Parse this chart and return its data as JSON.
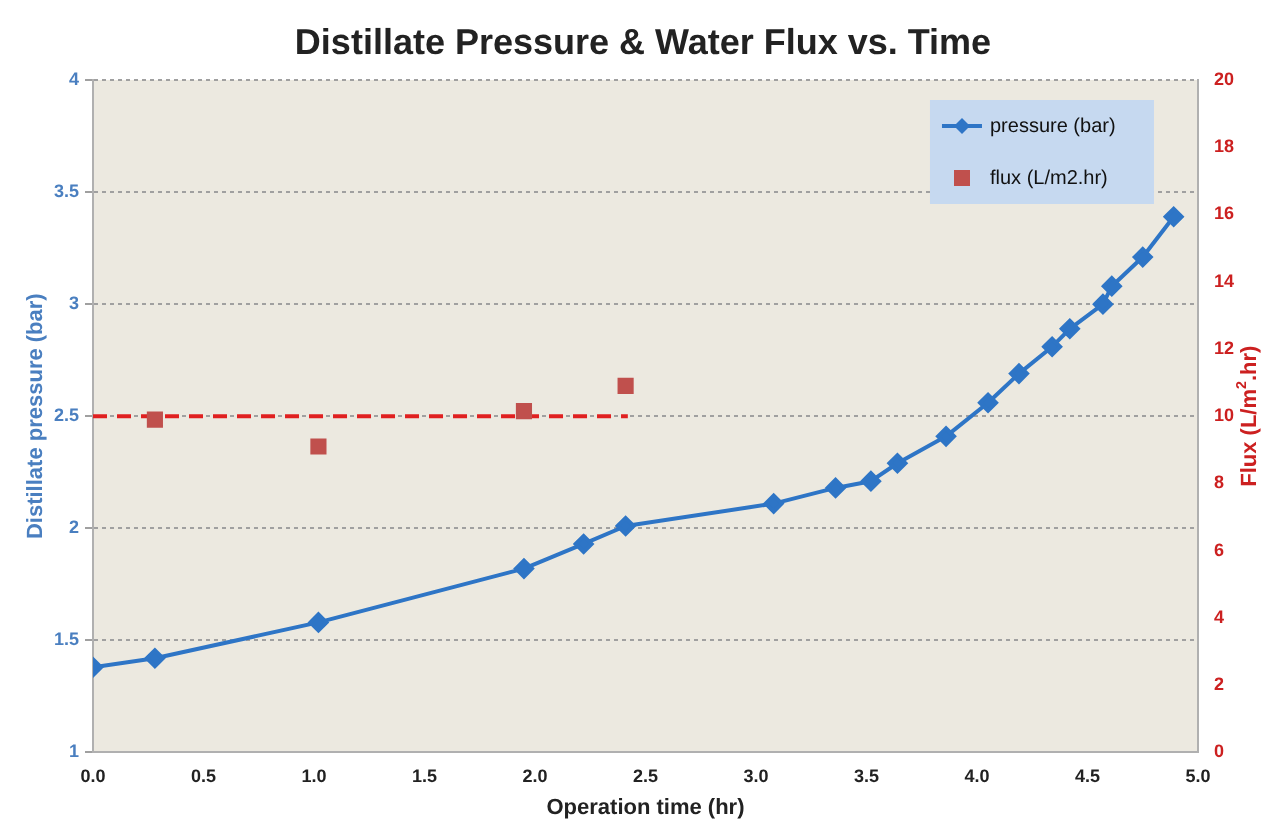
{
  "chart_data": {
    "type": "line",
    "title": "Distillate Pressure & Water Flux vs. Time",
    "xlabel": "Operation time (hr)",
    "ylabel": "Distillate pressure (bar)",
    "y2label": "Flux (L/m$^{2}$.hr)",
    "xlim": [
      0,
      5
    ],
    "xticks": [
      {
        "value": 0,
        "label": "0.0"
      },
      {
        "value": 0.5,
        "label": "0.5"
      },
      {
        "value": 1,
        "label": "1.0"
      },
      {
        "value": 1.5,
        "label": "1.5"
      },
      {
        "value": 2,
        "label": "2.0"
      },
      {
        "value": 2.5,
        "label": "2.5"
      },
      {
        "value": 3,
        "label": "3.0"
      },
      {
        "value": 3.5,
        "label": "3.5"
      },
      {
        "value": 4,
        "label": "4.0"
      },
      {
        "value": 4.5,
        "label": "4.5"
      },
      {
        "value": 5,
        "label": "5.0"
      }
    ],
    "ylim": [
      1,
      4
    ],
    "yticks": [
      1,
      1.5,
      2,
      2.5,
      3,
      3.5,
      4
    ],
    "y2lim": [
      0,
      20
    ],
    "y2ticks": [
      0,
      2,
      4,
      6,
      8,
      10,
      12,
      14,
      16,
      18,
      20
    ],
    "grid": "y",
    "legend": "top right",
    "series": [
      {
        "name": "pressure (bar)",
        "type": "line",
        "color": "#2e75c6",
        "marker": "diamond",
        "x": [
          0,
          0.28,
          1.02,
          1.95,
          2.22,
          2.41,
          3.08,
          3.36,
          3.52,
          3.64,
          3.86,
          4.05,
          4.19,
          4.34,
          4.42,
          4.57,
          4.61,
          4.75,
          4.89
        ],
        "values": [
          1.38,
          1.42,
          1.58,
          1.82,
          1.93,
          2.01,
          2.11,
          2.18,
          2.21,
          2.29,
          2.41,
          2.56,
          2.69,
          2.81,
          2.89,
          3.0,
          3.08,
          3.21,
          3.39
        ]
      },
      {
        "name": "flux (L/m2.hr)",
        "type": "scatter",
        "color": "#c0504d",
        "marker": "square",
        "axis": "y2",
        "x": [
          0.28,
          1.02,
          1.95,
          2.41
        ],
        "values": [
          9.9,
          9.1,
          10.15,
          10.9
        ]
      },
      {
        "type": "line",
        "color": "#e02020",
        "marker": "none",
        "line_style": "dashed",
        "axis": "y2",
        "x": [
          0,
          2.42
        ],
        "values": [
          10,
          10
        ]
      }
    ]
  }
}
